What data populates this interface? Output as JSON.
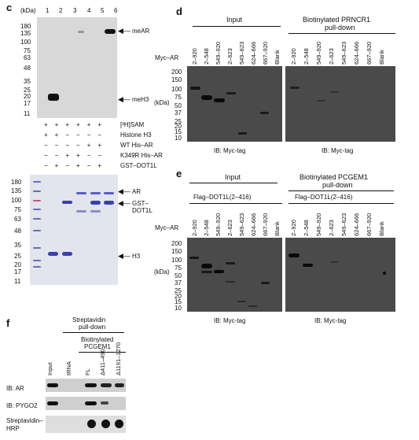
{
  "panel_c": {
    "letter": "c",
    "kda_label": "(kDa)",
    "lane_numbers": [
      "1",
      "2",
      "3",
      "4",
      "5",
      "6"
    ],
    "top_markers": [
      "180",
      "135",
      "100",
      "75",
      "63",
      "48",
      "35",
      "25",
      "20",
      "17",
      "11"
    ],
    "top_annotations": [
      "meAR",
      "meH3"
    ],
    "condition_rows": [
      {
        "label": "[³H]SAM",
        "signs": [
          "+",
          "+",
          "+",
          "+",
          "+",
          "+"
        ]
      },
      {
        "label": "Histone H3",
        "signs": [
          "+",
          "+",
          "−",
          "−",
          "−",
          "−"
        ]
      },
      {
        "label": "WT His–AR",
        "signs": [
          "−",
          "−",
          "−",
          "−",
          "+",
          "+"
        ]
      },
      {
        "label": "K349R His–AR",
        "signs": [
          "−",
          "−",
          "+",
          "+",
          "−",
          "−"
        ]
      },
      {
        "label": "GST–DOT1L",
        "signs": [
          "−",
          "+",
          "−",
          "+",
          "−",
          "+"
        ]
      }
    ],
    "bottom_markers": [
      "180",
      "135",
      "100",
      "75",
      "63",
      "48",
      "35",
      "25",
      "20",
      "17",
      "11"
    ],
    "bottom_annotations": [
      "AR",
      "GST–",
      "DOT1L",
      "H3"
    ]
  },
  "panel_d": {
    "letter": "d",
    "left_title": "Input",
    "right_title_line1": "Biotinylated PRNCR1",
    "right_title_line2": "pull-down",
    "row_label": "Myc–AR",
    "lanes": [
      "2–920",
      "2–548",
      "549–920",
      "2–623",
      "549–623",
      "624–666",
      "667–920",
      "Blank"
    ],
    "kda_label": "(kDa)",
    "markers": [
      "200",
      "150",
      "100",
      "75",
      "50",
      "37",
      "25",
      "20",
      "15",
      "10"
    ],
    "ib_left": "IB: Myc-tag",
    "ib_right": "IB: Myc-tag"
  },
  "panel_e": {
    "letter": "e",
    "left_title": "Input",
    "right_title_line1": "Biotinylated PCGEM1",
    "right_title_line2": "pull-down",
    "flag_label": "Flag–DOT1L(2–416)",
    "row_label": "Myc–AR",
    "lanes": [
      "2–920",
      "2–548",
      "549–920",
      "2–623",
      "549–623",
      "624–666",
      "667–920",
      "Blank"
    ],
    "kda_label": "(kDa)",
    "markers": [
      "200",
      "150",
      "100",
      "75",
      "50",
      "37",
      "25",
      "20",
      "15",
      "10"
    ],
    "ib_left": "IB: Myc-tag",
    "ib_right": "IB: Myc-tag"
  },
  "panel_f": {
    "letter": "f",
    "title_line1": "Streptavidin",
    "title_line2": "pull-down",
    "sub_line1": "Biotinylated",
    "sub_line2": "PCGEM1",
    "lanes": [
      "Input",
      "tRNA",
      "FL",
      "Δ411–490",
      "Δ1191–1270"
    ],
    "rows": [
      "IB: AR",
      "IB: PYGO2",
      "Streptavidin–",
      "HRP"
    ]
  }
}
